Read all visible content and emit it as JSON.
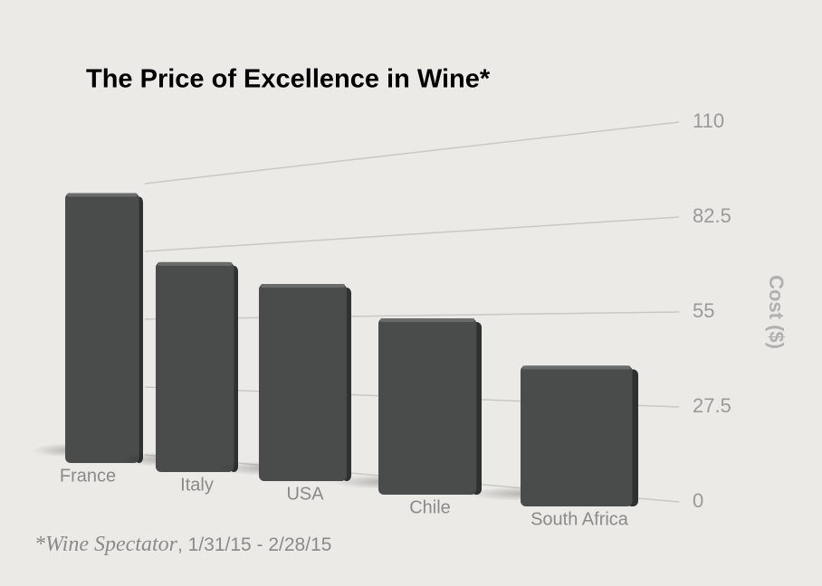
{
  "chart_data": {
    "type": "bar",
    "title": "The Price of Excellence in Wine*",
    "y_label": "Cost ($)",
    "categories": [
      "France",
      "Italy",
      "USA",
      "Chile",
      "South Africa"
    ],
    "values": [
      108,
      77,
      67,
      54,
      39
    ],
    "color": "#4a4c4c",
    "ylim": [
      0,
      110
    ],
    "yticks": [
      0,
      27.5,
      55,
      82.5,
      110
    ],
    "grid": true,
    "footnote_source": "*Wine Spectator",
    "footnote_dates": ", 1/31/15 - 2/28/15"
  }
}
